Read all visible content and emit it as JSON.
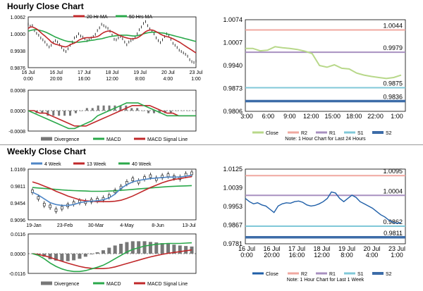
{
  "titles": {
    "hourly": "Hourly Close Chart",
    "weekly": "Weekly Close Chart"
  },
  "colors": {
    "close": "#000000",
    "ma20": "#c0282a",
    "ma50": "#2aa84a",
    "wk4": "#4e86c6",
    "wk13": "#c0282a",
    "wk40": "#2aa84a",
    "macd": "#2aa84a",
    "signal": "#c0282a",
    "divergence": "#777777",
    "pivot_close": "#b8d88a",
    "r2": "#f0a8a0",
    "r1": "#a890c0",
    "s1": "#80c8d8",
    "s2": "#3c6ca8",
    "right_close": "#1f5fa8"
  },
  "chart_data": [
    {
      "id": "hourly_price",
      "type": "line",
      "yticks": [
        "1.0062",
        "1.0000",
        "0.9938",
        "0.9876"
      ],
      "ylim": [
        0.9876,
        1.0062
      ],
      "xticks": [
        "16 Jul\n0:00",
        "16 Jul\n20:00",
        "17 Jul\n16:00",
        "18 Jul\n12:00",
        "19 Jul\n8:00",
        "20 Jul\n4:00",
        "23 Jul\n1:00"
      ],
      "legend": [
        "20 Hr MA",
        "50 Hrs MA"
      ],
      "series": [
        {
          "name": "close",
          "values": [
            1.0035,
            1.0028,
            1.003,
            1.0012,
            1.0002,
            0.9995,
            0.9985,
            0.9978,
            0.997,
            0.996,
            0.9952,
            0.9958,
            0.9968,
            0.9975,
            0.997,
            0.996,
            0.995,
            0.994,
            0.9935,
            0.9945,
            0.9958,
            0.997,
            0.9985,
            0.999,
            1.0,
            0.9992,
            0.9988,
            0.9982,
            0.9975,
            0.9978,
            0.9985,
            0.999,
            0.9998,
            1.0012,
            1.0022,
            1.0035,
            1.003,
            1.0025,
            1.002,
            1.001,
            0.9995,
            0.998,
            0.9978,
            0.9985,
            0.999,
            0.9982,
            0.997,
            0.996,
            0.997,
            0.9975,
            0.998,
            0.9988,
            1.0,
            1.0015,
            1.0025,
            1.0038,
            1.0045,
            1.003,
            1.0018,
            1.001,
            1.0,
            0.9985,
            0.9975,
            0.9968,
            0.9978,
            0.999,
            1.0,
            0.9995,
            0.998,
            0.9965,
            0.9958,
            0.995,
            0.994,
            0.9935,
            0.993,
            0.9925,
            0.9918,
            0.9905,
            0.9898,
            0.9895,
            0.99
          ]
        },
        {
          "name": "20 Hr MA",
          "values": [
            1.002,
            1.0025,
            1.0025,
            1.0022,
            1.0018,
            1.0012,
            1.0005,
            0.9998,
            0.9992,
            0.9985,
            0.9978,
            0.997,
            0.9965,
            0.9962,
            0.996,
            0.9958,
            0.9955,
            0.9953,
            0.9952,
            0.9955,
            0.996,
            0.9963,
            0.9966,
            0.997,
            0.9976,
            0.998,
            0.9983,
            0.9985,
            0.9986,
            0.9986,
            0.9986,
            0.9987,
            0.9988,
            0.999,
            0.9994,
            1.0,
            1.0005,
            1.0008,
            1.001,
            1.001,
            1.0008,
            1.0004,
            1.0,
            0.9996,
            0.9993,
            0.999,
            0.9987,
            0.9985,
            0.9983,
            0.9982,
            0.9982,
            0.9983,
            0.9985,
            0.999,
            0.9995,
            1.0002,
            1.0008,
            1.0012,
            1.0014,
            1.0014,
            1.0012,
            1.0008,
            1.0004,
            0.9999,
            0.9995,
            0.9992,
            0.999,
            0.9988,
            0.9985,
            0.9982,
            0.9978,
            0.9974,
            0.997,
            0.9965,
            0.996,
            0.9955,
            0.995,
            0.9945,
            0.994,
            0.9935,
            0.993
          ]
        },
        {
          "name": "50 Hrs MA",
          "values": [
            1.001,
            1.0012,
            1.0014,
            1.0015,
            1.0015,
            1.0014,
            1.0012,
            1.001,
            1.0007,
            1.0004,
            1.0,
            0.9996,
            0.9992,
            0.9988,
            0.9985,
            0.9982,
            0.9979,
            0.9976,
            0.9974,
            0.9972,
            0.9971,
            0.997,
            0.9969,
            0.9969,
            0.9969,
            0.997,
            0.9971,
            0.9972,
            0.9973,
            0.9975,
            0.9976,
            0.9977,
            0.9978,
            0.998,
            0.9981,
            0.9982,
            0.9984,
            0.9986,
            0.9988,
            0.999,
            0.9991,
            0.9992,
            0.9993,
            0.9994,
            0.9995,
            0.9995,
            0.9995,
            0.9995,
            0.9994,
            0.9993,
            0.9992,
            0.9992,
            0.9993,
            0.9995,
            0.9997,
            1.0,
            1.0002,
            1.0004,
            1.0005,
            1.0006,
            1.0006,
            1.0006,
            1.0005,
            1.0004,
            1.0003,
            1.0002,
            1.0,
            0.9998,
            0.9996,
            0.9994,
            0.9992,
            0.999,
            0.9988,
            0.9986,
            0.9984,
            0.9982,
            0.998,
            0.9978,
            0.9976,
            0.9974,
            0.9972
          ]
        }
      ]
    },
    {
      "id": "hourly_macd",
      "type": "line",
      "yticks": [
        "0.0008",
        "0.0000",
        "-0.0008"
      ],
      "ylim": [
        -0.0008,
        0.0008
      ],
      "legend": [
        "Divergence",
        "MACD",
        "MACD Signal Line"
      ],
      "series": [
        {
          "name": "MACD",
          "values": [
            0.0,
            -0.0001,
            -0.0002,
            -0.0003,
            -0.0004,
            -0.0005,
            -0.0006,
            -0.0007,
            -0.0007,
            -0.0006,
            -0.0005,
            -0.0004,
            -0.0002,
            -0.0001,
            0.0,
            0.0001,
            0.0002,
            0.0003,
            0.0003,
            0.0003,
            0.0002,
            0.0001,
            0.0,
            -0.0001,
            -0.0002,
            -0.0002,
            -0.0002,
            -0.0002,
            -0.0002,
            -0.0002
          ]
        },
        {
          "name": "MACD Signal Line",
          "values": [
            0.0,
            0.0,
            -0.0001,
            -0.0001,
            -0.0002,
            -0.0003,
            -0.0004,
            -0.0005,
            -0.0006,
            -0.0006,
            -0.0006,
            -0.0005,
            -0.0004,
            -0.0003,
            -0.0002,
            -0.0001,
            0.0,
            0.0001,
            0.0002,
            0.0002,
            0.0002,
            0.0002,
            0.0001,
            0.0,
            -0.0001,
            -0.0001,
            -0.0002,
            -0.0002,
            -0.0002,
            -0.0002
          ]
        },
        {
          "name": "Divergence",
          "values": [
            0.0,
            -0.0001,
            -0.0001,
            -0.0002,
            -0.0002,
            -0.0002,
            -0.0002,
            -0.0002,
            -0.0001,
            0.0,
            0.0001,
            0.0001,
            0.0002,
            0.0002,
            0.0002,
            0.0002,
            0.0002,
            0.0002,
            0.0001,
            0.0001,
            0.0,
            -0.0001,
            -0.0001,
            -0.0001,
            -0.0001,
            -0.0001,
            0.0,
            0.0,
            0.0,
            0.0
          ]
        }
      ]
    },
    {
      "id": "hourly_pivot",
      "type": "line",
      "yticks": [
        "1.0074",
        "1.0007",
        "0.9940",
        "0.9873",
        "0.9806"
      ],
      "ylim": [
        0.9806,
        1.0074
      ],
      "xticks": [
        "3:00",
        "6:00",
        "9:00",
        "12:00",
        "15:00",
        "18:00",
        "22:00",
        "1:00"
      ],
      "levels": [
        {
          "name": "R2",
          "value": 1.0044,
          "label": "1.0044"
        },
        {
          "name": "R1",
          "value": 0.9979,
          "label": "0.9979"
        },
        {
          "name": "S1",
          "value": 0.9875,
          "label": "0.9875"
        },
        {
          "name": "S2",
          "value": 0.9836,
          "label": "0.9836"
        }
      ],
      "series": [
        {
          "name": "Close",
          "values": [
            0.999,
            0.999,
            0.9983,
            0.9985,
            0.9995,
            0.9992,
            0.999,
            0.9987,
            0.9982,
            0.9975,
            0.994,
            0.9935,
            0.9942,
            0.9932,
            0.993,
            0.9918,
            0.9912,
            0.9908,
            0.9905,
            0.9902,
            0.9905,
            0.9912
          ]
        }
      ],
      "legend": [
        "Close",
        "R2",
        "R1",
        "S1",
        "S2"
      ],
      "note": "Note: 1 Hour Chart for Last 24 Hours"
    },
    {
      "id": "weekly_price",
      "type": "line",
      "yticks": [
        "1.0169",
        "0.9811",
        "0.9454",
        "0.9096"
      ],
      "ylim": [
        0.9096,
        1.0169
      ],
      "xticks": [
        "19-Jan",
        "23-Feb",
        "30-Mar",
        "4-May",
        "8-Jun",
        "13-Jul"
      ],
      "legend": [
        "4 Week",
        "13 Week",
        "40 Week"
      ],
      "series": [
        {
          "name": "close",
          "values": [
            0.97,
            0.956,
            0.942,
            0.938,
            0.93,
            0.935,
            0.94,
            0.945,
            0.948,
            0.947,
            0.95,
            0.952,
            0.954,
            0.96,
            0.97,
            0.978,
            0.988,
            0.995,
            0.99,
            0.998,
            1.002,
            0.996,
            1.001,
            1.004,
            1.0,
            0.998,
            1.005,
            1.008
          ]
        },
        {
          "name": "4 Week",
          "values": [
            0.968,
            0.962,
            0.954,
            0.946,
            0.942,
            0.94,
            0.94,
            0.942,
            0.946,
            0.948,
            0.949,
            0.95,
            0.952,
            0.956,
            0.964,
            0.976,
            0.984,
            0.99,
            0.993,
            0.995,
            0.997,
            0.998,
            0.999,
            1.0,
            1.0,
            1.0,
            1.002,
            1.004
          ]
        },
        {
          "name": "13 Week",
          "values": [
            0.99,
            0.986,
            0.981,
            0.976,
            0.97,
            0.965,
            0.96,
            0.956,
            0.952,
            0.95,
            0.949,
            0.948,
            0.948,
            0.948,
            0.949,
            0.951,
            0.955,
            0.96,
            0.966,
            0.972,
            0.978,
            0.983,
            0.988,
            0.992,
            0.995,
            0.997,
            0.999,
            1.001
          ]
        },
        {
          "name": "40 Week",
          "values": [
            0.978,
            0.977,
            0.976,
            0.975,
            0.974,
            0.973,
            0.972,
            0.9715,
            0.971,
            0.9705,
            0.97,
            0.97,
            0.97,
            0.9705,
            0.971,
            0.972,
            0.973,
            0.974,
            0.975,
            0.976,
            0.977,
            0.978,
            0.979,
            0.98,
            0.9805,
            0.981,
            0.9815,
            0.982
          ]
        }
      ]
    },
    {
      "id": "weekly_macd",
      "type": "line",
      "yticks": [
        "0.0116",
        "0.0000",
        "-0.0116"
      ],
      "ylim": [
        -0.0116,
        0.0116
      ],
      "legend": [
        "Divergence",
        "MACD",
        "MACD Signal Line"
      ],
      "series": [
        {
          "name": "MACD",
          "values": [
            0.0,
            -0.001,
            -0.003,
            -0.0055,
            -0.0075,
            -0.009,
            -0.01,
            -0.0105,
            -0.0105,
            -0.01,
            -0.009,
            -0.008,
            -0.0068,
            -0.005,
            -0.003,
            -0.001,
            0.001,
            0.0025,
            0.0035,
            0.0045,
            0.005,
            0.0055,
            0.0058,
            0.006,
            0.006,
            0.006,
            0.0062,
            0.0064
          ]
        },
        {
          "name": "MACD Signal Line",
          "values": [
            0.0,
            -0.0005,
            -0.0012,
            -0.0022,
            -0.0034,
            -0.0045,
            -0.0056,
            -0.0066,
            -0.0075,
            -0.0082,
            -0.0086,
            -0.0088,
            -0.0088,
            -0.0085,
            -0.0078,
            -0.0068,
            -0.0058,
            -0.0048,
            -0.0038,
            -0.0028,
            -0.0019,
            -0.0011,
            -0.0004,
            0.0002,
            0.0007,
            0.0012,
            0.0017,
            0.0022
          ]
        },
        {
          "name": "Divergence",
          "values": [
            0.0,
            -0.0005,
            -0.0018,
            -0.0033,
            -0.0041,
            -0.0045,
            -0.0044,
            -0.0039,
            -0.003,
            -0.0018,
            -0.0004,
            0.0008,
            0.002,
            0.0035,
            0.0048,
            0.0058,
            0.0068,
            0.0073,
            0.0073,
            0.0073,
            0.0069,
            0.0066,
            0.0062,
            0.0058,
            0.0053,
            0.0048,
            0.0045,
            0.0042
          ]
        }
      ]
    },
    {
      "id": "weekly_pivot",
      "type": "line",
      "yticks": [
        "1.0125",
        "1.0039",
        "0.9953",
        "0.9867",
        "0.9781"
      ],
      "ylim": [
        0.9781,
        1.0125
      ],
      "xticks": [
        "16 Jul\n0:00",
        "16 Jul\n20:00",
        "17 Jul\n16:00",
        "18 Jul\n12:00",
        "19 Jul\n8:00",
        "20 Jul\n4:00",
        "23 Jul\n1:00"
      ],
      "levels": [
        {
          "name": "R2",
          "value": 1.0095,
          "label": "1.0095"
        },
        {
          "name": "R1",
          "value": 1.0004,
          "label": "1.0004"
        },
        {
          "name": "S1",
          "value": 0.9862,
          "label": "0.9862"
        },
        {
          "name": "S2",
          "value": 0.9811,
          "label": "0.9811"
        }
      ],
      "series": [
        {
          "name": "Close",
          "values": [
            0.999,
            0.9975,
            0.9965,
            0.997,
            0.996,
            0.9955,
            0.994,
            0.9925,
            0.9955,
            0.9965,
            0.997,
            0.9968,
            0.9975,
            0.9978,
            0.9972,
            0.996,
            0.9955,
            0.9958,
            0.9965,
            0.9975,
            0.999,
            1.002,
            1.0015,
            0.999,
            0.9975,
            0.999,
            1.0005,
            0.9995,
            0.9975,
            0.9965,
            0.9955,
            0.9945,
            0.993,
            0.9915,
            0.9905,
            0.989,
            0.988,
            0.9875,
            0.988
          ]
        }
      ],
      "legend": [
        "Close",
        "R2",
        "R1",
        "S1",
        "S2"
      ],
      "note": "Note: 1 Hour Chart for Last 1 Week"
    }
  ]
}
